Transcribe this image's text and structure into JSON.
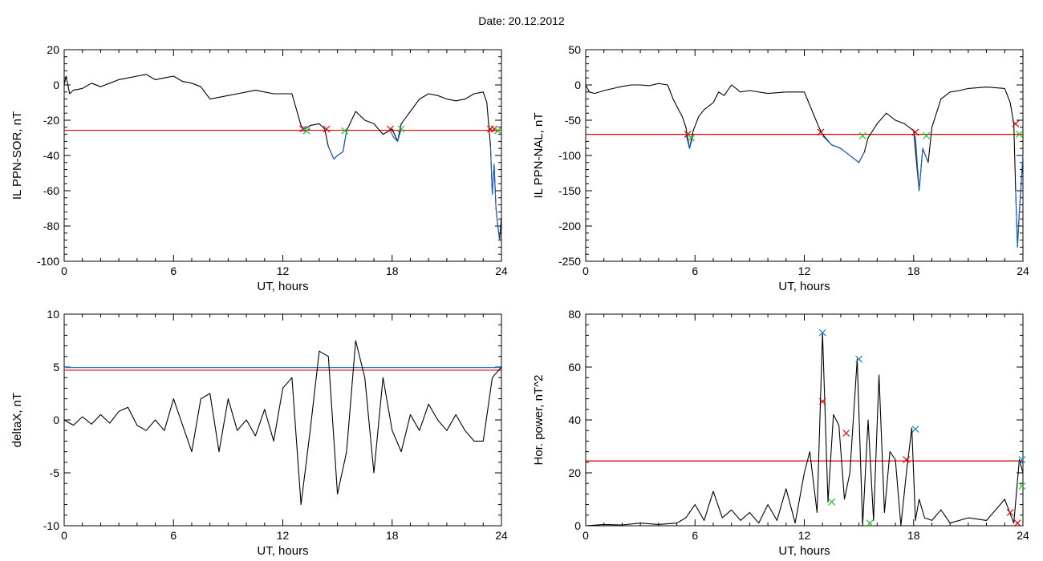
{
  "date_label": "Date:  20.12.2012",
  "colors": {
    "trace": "#000000",
    "threshold": "#e00000",
    "highlight": "#1560d0",
    "cross_green": "#20c020",
    "cross_blue": "#1a7fd0",
    "threshold2": "#1a7fd0"
  },
  "chart_data": [
    {
      "type": "line",
      "ylabel": "IL PPN-SOR, nT",
      "xlabel": "UT, hours",
      "xlim": [
        0,
        24
      ],
      "ylim": [
        -100,
        20
      ],
      "xticks": [
        0,
        6,
        12,
        18,
        24
      ],
      "yticks": [
        20,
        0,
        -20,
        -40,
        -60,
        -80,
        -100
      ],
      "series": [
        {
          "role": "trace",
          "x": [
            0,
            0.1,
            0.3,
            0.5,
            1,
            1.5,
            2,
            2.5,
            3,
            3.5,
            4,
            4.5,
            5,
            5.5,
            6,
            6.5,
            7,
            7.5,
            8,
            8.5,
            9,
            9.5,
            10,
            10.5,
            11,
            11.5,
            12,
            12.5,
            13,
            13.2,
            13.5,
            14,
            14.3,
            14.5,
            14.8,
            15,
            15.3,
            15.5,
            16,
            16.5,
            17,
            17.5,
            18,
            18.3,
            18.5,
            19,
            19.5,
            20,
            20.5,
            21,
            21.5,
            22,
            22.5,
            23,
            23.2,
            23.4,
            23.5,
            23.6,
            23.7,
            23.8,
            23.9,
            24
          ],
          "values": [
            0,
            5,
            -5,
            -3,
            -2,
            1,
            -1,
            1,
            3,
            4,
            5,
            6,
            3,
            4,
            5,
            2,
            1,
            -1,
            -8,
            -7,
            -6,
            -5,
            -4,
            -3,
            -4,
            -5,
            -5,
            -5,
            -23,
            -25,
            -23,
            -22,
            -25,
            -35,
            -42,
            -40,
            -38,
            -26,
            -15,
            -20,
            -22,
            -28,
            -25,
            -32,
            -22,
            -15,
            -8,
            -5,
            -6,
            -8,
            -9,
            -8,
            -5,
            -4,
            -10,
            -35,
            -62,
            -45,
            -70,
            -80,
            -88,
            -75
          ]
        },
        {
          "role": "below-threshold",
          "x": [
            13,
            13.2,
            13.5
          ],
          "values": [
            -26,
            -26,
            -25
          ]
        },
        {
          "role": "below-threshold",
          "x": [
            14.5,
            14.8,
            15,
            15.3,
            15.5
          ],
          "values": [
            -35,
            -42,
            -40,
            -38,
            -26
          ]
        },
        {
          "role": "below-threshold",
          "x": [
            17.9,
            18.1,
            18.3,
            18.5
          ],
          "values": [
            -26,
            -30,
            -32,
            -25
          ]
        },
        {
          "role": "below-threshold",
          "x": [
            23.4,
            23.5,
            23.6,
            23.7,
            23.8,
            23.9
          ],
          "values": [
            -35,
            -62,
            -45,
            -70,
            -80,
            -88
          ]
        }
      ],
      "hlines": [
        {
          "y": -25.7,
          "color": "#e00000"
        }
      ],
      "markers": [
        {
          "x": 13.1,
          "y": -25,
          "color": "#e00000"
        },
        {
          "x": 13.3,
          "y": -26,
          "color": "#20c020"
        },
        {
          "x": 14.4,
          "y": -25,
          "color": "#e00000"
        },
        {
          "x": 15.4,
          "y": -26,
          "color": "#20c020"
        },
        {
          "x": 17.9,
          "y": -25,
          "color": "#e00000"
        },
        {
          "x": 18.5,
          "y": -25,
          "color": "#20c020"
        },
        {
          "x": 23.4,
          "y": -25,
          "color": "#e00000"
        },
        {
          "x": 23.6,
          "y": -25,
          "color": "#e00000"
        },
        {
          "x": 23.8,
          "y": -26,
          "color": "#20c020"
        }
      ]
    },
    {
      "type": "line",
      "ylabel": "IL PPN-NAL, nT",
      "xlabel": "UT, hours",
      "xlim": [
        0,
        24
      ],
      "ylim": [
        -250,
        50
      ],
      "xticks": [
        0,
        6,
        12,
        18,
        24
      ],
      "yticks": [
        50,
        0,
        -50,
        -100,
        -150,
        -200,
        -250
      ],
      "series": [
        {
          "role": "trace",
          "x": [
            0,
            0.2,
            0.5,
            1,
            1.5,
            2,
            2.5,
            3,
            3.5,
            4,
            4.5,
            4.8,
            5,
            5.3,
            5.5,
            5.7,
            5.9,
            6.2,
            6.5,
            7,
            7.3,
            7.6,
            8,
            8.5,
            9,
            10,
            11,
            12,
            12.8,
            13,
            13.5,
            14,
            14.5,
            15,
            15.3,
            15.5,
            16,
            16.5,
            17,
            17.5,
            18,
            18.3,
            18.5,
            18.8,
            19,
            19.5,
            20,
            20.5,
            21,
            22,
            23,
            23.3,
            23.5,
            23.6,
            23.7,
            23.8,
            24
          ],
          "values": [
            0,
            -10,
            -12,
            -8,
            -5,
            -2,
            0,
            0,
            -1,
            2,
            0,
            -20,
            -30,
            -45,
            -60,
            -90,
            -65,
            -45,
            -35,
            -25,
            -10,
            -15,
            0,
            -10,
            -8,
            -12,
            -10,
            -10,
            -60,
            -70,
            -85,
            -90,
            -100,
            -110,
            -95,
            -75,
            -55,
            -40,
            -50,
            -55,
            -65,
            -150,
            -90,
            -110,
            -60,
            -20,
            -10,
            -8,
            -5,
            -3,
            -5,
            -25,
            -55,
            -150,
            -230,
            -180,
            -100
          ]
        },
        {
          "role": "below-threshold",
          "x": [
            5.5,
            5.7,
            5.9
          ],
          "values": [
            -70,
            -90,
            -72
          ]
        },
        {
          "role": "below-threshold",
          "x": [
            13,
            13.5,
            14,
            14.5,
            15,
            15.3
          ],
          "values": [
            -72,
            -85,
            -90,
            -100,
            -110,
            -95
          ]
        },
        {
          "role": "below-threshold",
          "x": [
            18.1,
            18.3,
            18.5,
            18.8
          ],
          "values": [
            -72,
            -150,
            -90,
            -110
          ]
        },
        {
          "role": "below-threshold",
          "x": [
            23.6,
            23.7,
            23.8,
            24
          ],
          "values": [
            -150,
            -230,
            -180,
            -100
          ]
        }
      ],
      "hlines": [
        {
          "y": -70,
          "color": "#e00000"
        }
      ],
      "markers": [
        {
          "x": 5.6,
          "y": -70,
          "color": "#e00000"
        },
        {
          "x": 5.8,
          "y": -75,
          "color": "#20c020"
        },
        {
          "x": 12.9,
          "y": -67,
          "color": "#e00000"
        },
        {
          "x": 15.2,
          "y": -72,
          "color": "#20c020"
        },
        {
          "x": 18.1,
          "y": -67,
          "color": "#e00000"
        },
        {
          "x": 18.7,
          "y": -72,
          "color": "#20c020"
        },
        {
          "x": 23.6,
          "y": -55,
          "color": "#e00000"
        },
        {
          "x": 23.8,
          "y": -70,
          "color": "#20c020"
        }
      ]
    },
    {
      "type": "line",
      "ylabel": "deltaX, nT",
      "xlabel": "UT, hours",
      "xlim": [
        0,
        24
      ],
      "ylim": [
        -10,
        10
      ],
      "xticks": [
        0,
        6,
        12,
        18,
        24
      ],
      "yticks": [
        10,
        5,
        0,
        -5,
        -10
      ],
      "series": [
        {
          "role": "trace",
          "x": [
            0,
            0.5,
            1,
            1.5,
            2,
            2.5,
            3,
            3.5,
            4,
            4.5,
            5,
            5.5,
            6,
            6.5,
            7,
            7.5,
            8,
            8.5,
            9,
            9.5,
            10,
            10.5,
            11,
            11.5,
            12,
            12.5,
            13,
            13.5,
            14,
            14.5,
            15,
            15.5,
            16,
            16.5,
            17,
            17.5,
            18,
            18.5,
            19,
            19.5,
            20,
            20.5,
            21,
            21.5,
            22,
            22.5,
            23,
            23.5,
            24
          ],
          "values": [
            0,
            -0.5,
            0.3,
            -0.4,
            0.5,
            -0.3,
            0.8,
            1.2,
            -0.5,
            -1,
            0,
            -1,
            2,
            -0.5,
            -3,
            2,
            2.5,
            -3,
            2,
            -1,
            0,
            -1.5,
            1,
            -2,
            3,
            4,
            -8,
            -1,
            6.5,
            6,
            -7,
            -3,
            7.5,
            4,
            -5,
            4,
            -1,
            -3,
            0.5,
            -1,
            1.5,
            0,
            -1,
            0.5,
            -1,
            -2,
            -2,
            4,
            5
          ]
        }
      ],
      "hlines": [
        {
          "y": 4.7,
          "color": "#e00000"
        },
        {
          "y": 4.95,
          "color": "#1a7fd0"
        }
      ],
      "markers": []
    },
    {
      "type": "line",
      "ylabel": "Hor. power, nT^2",
      "xlabel": "UT, hours",
      "xlim": [
        0,
        24
      ],
      "ylim": [
        0,
        80
      ],
      "xticks": [
        0,
        6,
        12,
        18,
        24
      ],
      "yticks": [
        80,
        60,
        40,
        20,
        0
      ],
      "series": [
        {
          "role": "trace",
          "x": [
            0,
            1,
            2,
            3,
            4,
            5,
            5.5,
            6,
            6.5,
            7,
            7.5,
            8,
            8.5,
            9,
            9.5,
            10,
            10.5,
            11,
            11.5,
            12,
            12.3,
            12.7,
            13,
            13.3,
            13.6,
            13.9,
            14.2,
            14.5,
            14.9,
            15.2,
            15.5,
            15.8,
            16.1,
            16.4,
            16.7,
            17,
            17.3,
            17.6,
            17.9,
            18.1,
            18.3,
            18.6,
            19,
            19.5,
            20,
            21,
            22,
            23,
            23.5,
            23.8,
            24
          ],
          "values": [
            0,
            0.5,
            0.3,
            1,
            0.5,
            1,
            3,
            8,
            2,
            13,
            3,
            6,
            2,
            5,
            1,
            8,
            2,
            14,
            1,
            20,
            28,
            5,
            73,
            9,
            42,
            38,
            10,
            20,
            63,
            0,
            40,
            2,
            57,
            5,
            28,
            25,
            0,
            20,
            37,
            2,
            10,
            3,
            2,
            6,
            1,
            3,
            2,
            10,
            1,
            25,
            20
          ]
        }
      ],
      "hlines": [
        {
          "y": 24.5,
          "color": "#e00000"
        }
      ],
      "markers": [
        {
          "x": 13.0,
          "y": 73,
          "color": "#1a7fd0"
        },
        {
          "x": 15.0,
          "y": 63,
          "color": "#1a7fd0"
        },
        {
          "x": 18.1,
          "y": 36.5,
          "color": "#1a7fd0"
        },
        {
          "x": 23.95,
          "y": 25,
          "color": "#1a7fd0"
        },
        {
          "x": 13.0,
          "y": 47,
          "color": "#e00000"
        },
        {
          "x": 14.3,
          "y": 35,
          "color": "#e00000"
        },
        {
          "x": 17.6,
          "y": 25,
          "color": "#e00000"
        },
        {
          "x": 23.3,
          "y": 5,
          "color": "#e00000"
        },
        {
          "x": 23.7,
          "y": 1,
          "color": "#e00000"
        },
        {
          "x": 13.5,
          "y": 9,
          "color": "#20c020"
        },
        {
          "x": 15.6,
          "y": 1,
          "color": "#20c020"
        },
        {
          "x": 23.95,
          "y": 15,
          "color": "#20c020"
        }
      ]
    }
  ]
}
